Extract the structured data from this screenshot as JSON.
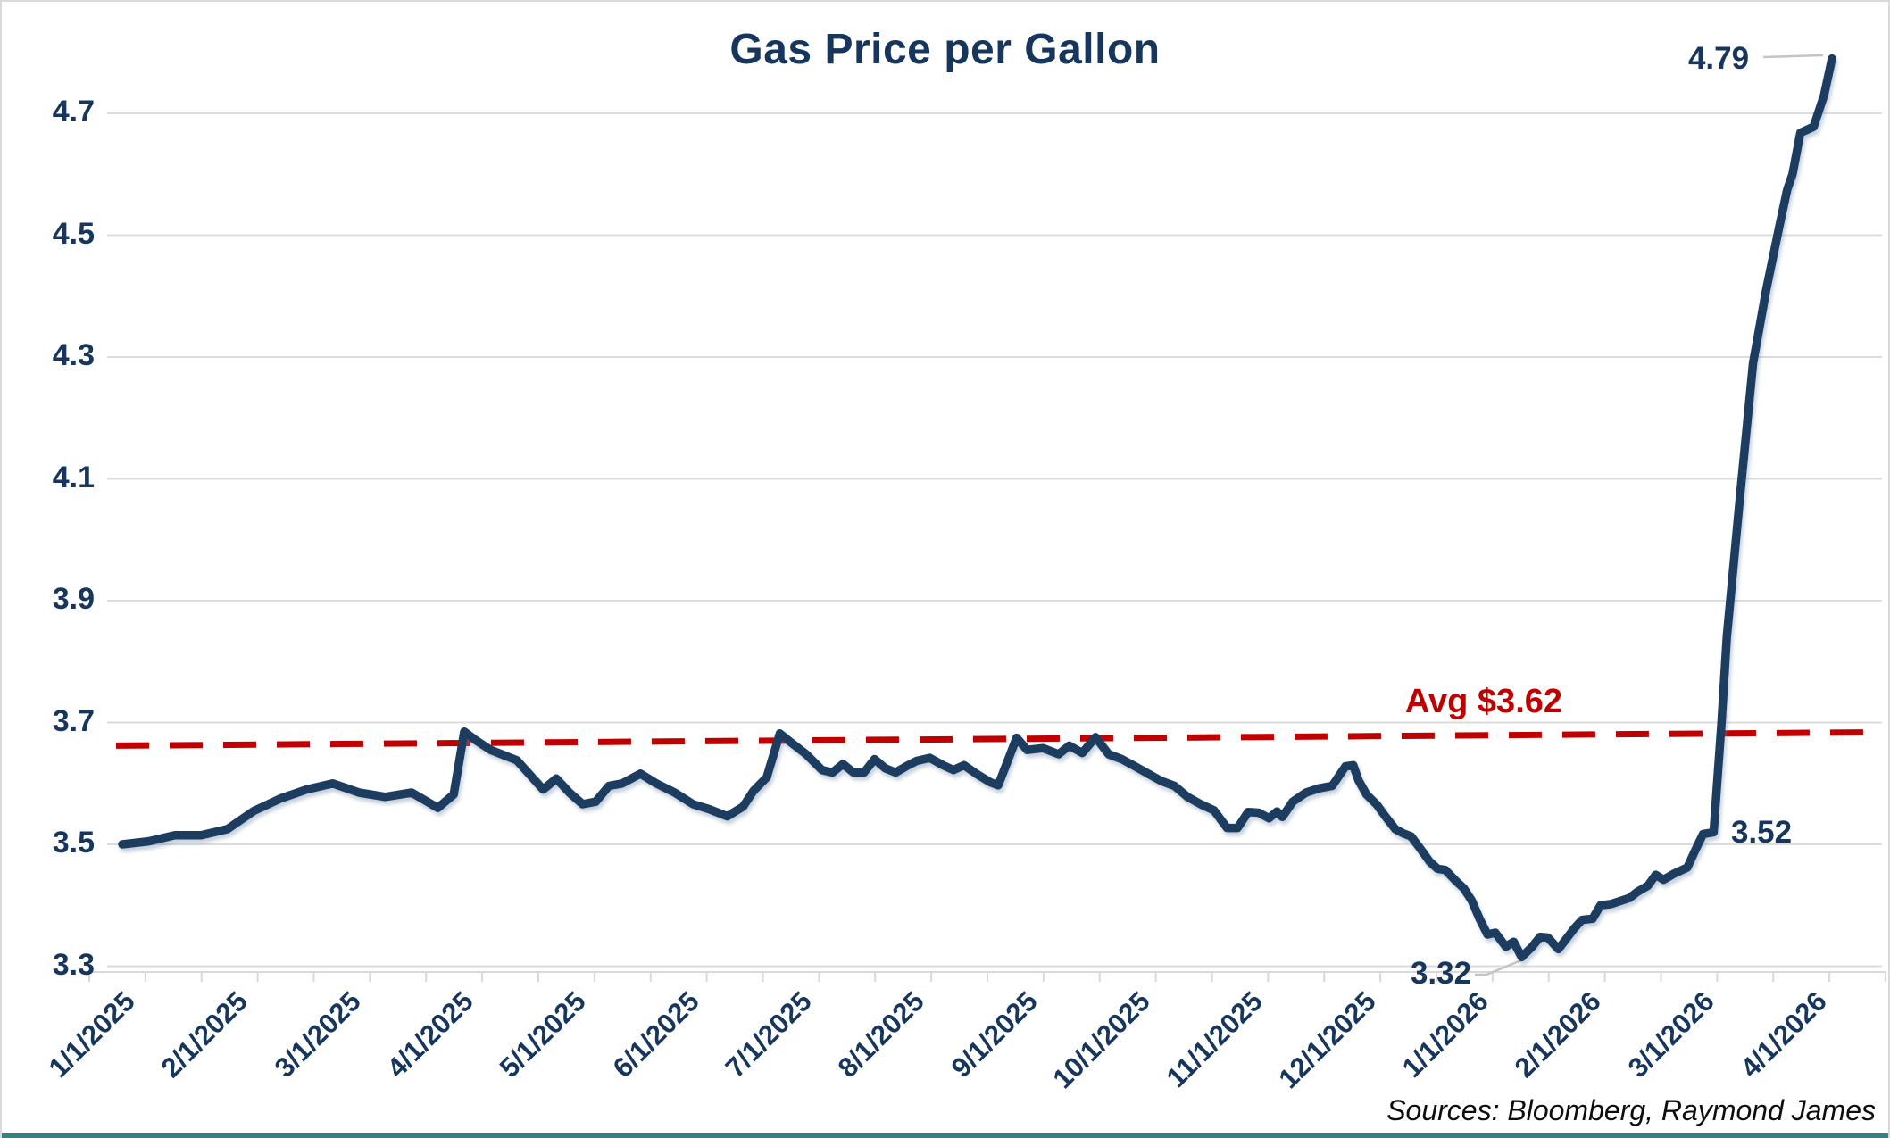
{
  "header": {
    "title": "Gas Price per Gallon"
  },
  "source_note": "Sources: Bloomberg, Raymond James",
  "colors": {
    "navy_text": "#17365d",
    "line": "#1c3c60",
    "avg_red": "#c00000",
    "gridline": "#dcdcdc",
    "axis": "#d9d9d9",
    "leader": "#c4c4c4",
    "bottom_bar_teal": "#3c7d80"
  },
  "annotations": {
    "peak_label": "4.79",
    "pre_spike_label": "3.52",
    "low_label": "3.32",
    "avg_label": "Avg $3.62"
  },
  "chart_data": {
    "type": "line",
    "title": "Gas Price per Gallon",
    "xlabel": "",
    "ylabel": "",
    "x_tick_labels": [
      "1/1/2025",
      "2/1/2025",
      "3/1/2025",
      "4/1/2025",
      "5/1/2025",
      "6/1/2025",
      "7/1/2025",
      "8/1/2025",
      "9/1/2025",
      "10/1/2025",
      "11/1/2025",
      "12/1/2025",
      "1/1/2026",
      "2/1/2026",
      "3/1/2026",
      "4/1/2026"
    ],
    "y_ticks": [
      4.7,
      4.5,
      4.3,
      4.1,
      3.9,
      3.7,
      3.5,
      3.3
    ],
    "ylim": [
      3.28,
      4.82
    ],
    "grid": "horizontal",
    "legend": false,
    "avg_line": {
      "label": "Avg $3.62",
      "value": 3.62,
      "style": "dashed",
      "color": "#c00000",
      "y_left": 3.662,
      "y_right": 3.684
    },
    "point_annotations": [
      {
        "text": "4.79",
        "week": 65,
        "value": 4.79
      },
      {
        "text": "3.52",
        "week": 60.5,
        "value": 3.52
      },
      {
        "text": "3.32",
        "week": 53.2,
        "value": 3.32
      }
    ],
    "series": [
      {
        "name": "Gas Price per Gallon (USD)",
        "start": "1/1/2025",
        "frequency": "weekly",
        "x_unit": "weeks since 1/1/2025",
        "points": [
          [
            0,
            3.5
          ],
          [
            1,
            3.505
          ],
          [
            2,
            3.515
          ],
          [
            3,
            3.515
          ],
          [
            4,
            3.525
          ],
          [
            5,
            3.555
          ],
          [
            6,
            3.575
          ],
          [
            7,
            3.59
          ],
          [
            8,
            3.6
          ],
          [
            9,
            3.585
          ],
          [
            10,
            3.578
          ],
          [
            11,
            3.585
          ],
          [
            12,
            3.56
          ],
          [
            12.6,
            3.582
          ],
          [
            13,
            3.685
          ],
          [
            13.4,
            3.672
          ],
          [
            14,
            3.655
          ],
          [
            15,
            3.638
          ],
          [
            16,
            3.59
          ],
          [
            16.5,
            3.608
          ],
          [
            17,
            3.585
          ],
          [
            17.5,
            3.566
          ],
          [
            18,
            3.57
          ],
          [
            18.5,
            3.596
          ],
          [
            19,
            3.6
          ],
          [
            19.7,
            3.616
          ],
          [
            20.3,
            3.6
          ],
          [
            21,
            3.585
          ],
          [
            21.7,
            3.566
          ],
          [
            22.3,
            3.558
          ],
          [
            23,
            3.546
          ],
          [
            23.6,
            3.562
          ],
          [
            24,
            3.588
          ],
          [
            24.5,
            3.61
          ],
          [
            25,
            3.682
          ],
          [
            25.4,
            3.668
          ],
          [
            26,
            3.648
          ],
          [
            26.6,
            3.622
          ],
          [
            27,
            3.618
          ],
          [
            27.4,
            3.632
          ],
          [
            27.8,
            3.618
          ],
          [
            28.2,
            3.618
          ],
          [
            28.6,
            3.64
          ],
          [
            29,
            3.625
          ],
          [
            29.4,
            3.618
          ],
          [
            29.8,
            3.628
          ],
          [
            30.2,
            3.637
          ],
          [
            30.7,
            3.642
          ],
          [
            31.2,
            3.63
          ],
          [
            31.6,
            3.622
          ],
          [
            32,
            3.63
          ],
          [
            32.5,
            3.615
          ],
          [
            33,
            3.602
          ],
          [
            33.3,
            3.597
          ],
          [
            34,
            3.675
          ],
          [
            34.4,
            3.655
          ],
          [
            35,
            3.658
          ],
          [
            35.6,
            3.648
          ],
          [
            36,
            3.662
          ],
          [
            36.5,
            3.65
          ],
          [
            37,
            3.676
          ],
          [
            37.5,
            3.648
          ],
          [
            38,
            3.64
          ],
          [
            38.5,
            3.628
          ],
          [
            39,
            3.616
          ],
          [
            39.5,
            3.604
          ],
          [
            40,
            3.596
          ],
          [
            40.5,
            3.578
          ],
          [
            41,
            3.566
          ],
          [
            41.5,
            3.556
          ],
          [
            42,
            3.527
          ],
          [
            42.4,
            3.527
          ],
          [
            42.8,
            3.553
          ],
          [
            43.2,
            3.552
          ],
          [
            43.6,
            3.543
          ],
          [
            43.9,
            3.554
          ],
          [
            44.1,
            3.545
          ],
          [
            44.5,
            3.57
          ],
          [
            45,
            3.585
          ],
          [
            45.5,
            3.592
          ],
          [
            46,
            3.596
          ],
          [
            46.5,
            3.628
          ],
          [
            46.8,
            3.63
          ],
          [
            47,
            3.605
          ],
          [
            47.3,
            3.582
          ],
          [
            47.7,
            3.565
          ],
          [
            48,
            3.547
          ],
          [
            48.4,
            3.525
          ],
          [
            48.7,
            3.518
          ],
          [
            49,
            3.513
          ],
          [
            49.4,
            3.49
          ],
          [
            49.7,
            3.472
          ],
          [
            50,
            3.46
          ],
          [
            50.3,
            3.458
          ],
          [
            50.7,
            3.44
          ],
          [
            51,
            3.428
          ],
          [
            51.3,
            3.408
          ],
          [
            51.6,
            3.378
          ],
          [
            51.9,
            3.352
          ],
          [
            52.2,
            3.355
          ],
          [
            52.6,
            3.332
          ],
          [
            52.9,
            3.34
          ],
          [
            53.2,
            3.315
          ],
          [
            53.6,
            3.332
          ],
          [
            53.9,
            3.348
          ],
          [
            54.2,
            3.347
          ],
          [
            54.6,
            3.328
          ],
          [
            55.2,
            3.362
          ],
          [
            55.5,
            3.376
          ],
          [
            55.9,
            3.378
          ],
          [
            56.2,
            3.4
          ],
          [
            56.6,
            3.402
          ],
          [
            57.3,
            3.412
          ],
          [
            57.6,
            3.422
          ],
          [
            58,
            3.432
          ],
          [
            58.3,
            3.45
          ],
          [
            58.6,
            3.442
          ],
          [
            59,
            3.452
          ],
          [
            59.5,
            3.462
          ],
          [
            59.8,
            3.49
          ],
          [
            60.1,
            3.517
          ],
          [
            60.5,
            3.52
          ],
          [
            60.8,
            3.7
          ],
          [
            61,
            3.84
          ],
          [
            61.5,
            4.07
          ],
          [
            62,
            4.29
          ],
          [
            62.5,
            4.41
          ],
          [
            63,
            4.515
          ],
          [
            63.3,
            4.575
          ],
          [
            63.5,
            4.6
          ],
          [
            63.8,
            4.668
          ],
          [
            64.3,
            4.678
          ],
          [
            64.7,
            4.73
          ],
          [
            65,
            4.79
          ]
        ]
      }
    ]
  }
}
